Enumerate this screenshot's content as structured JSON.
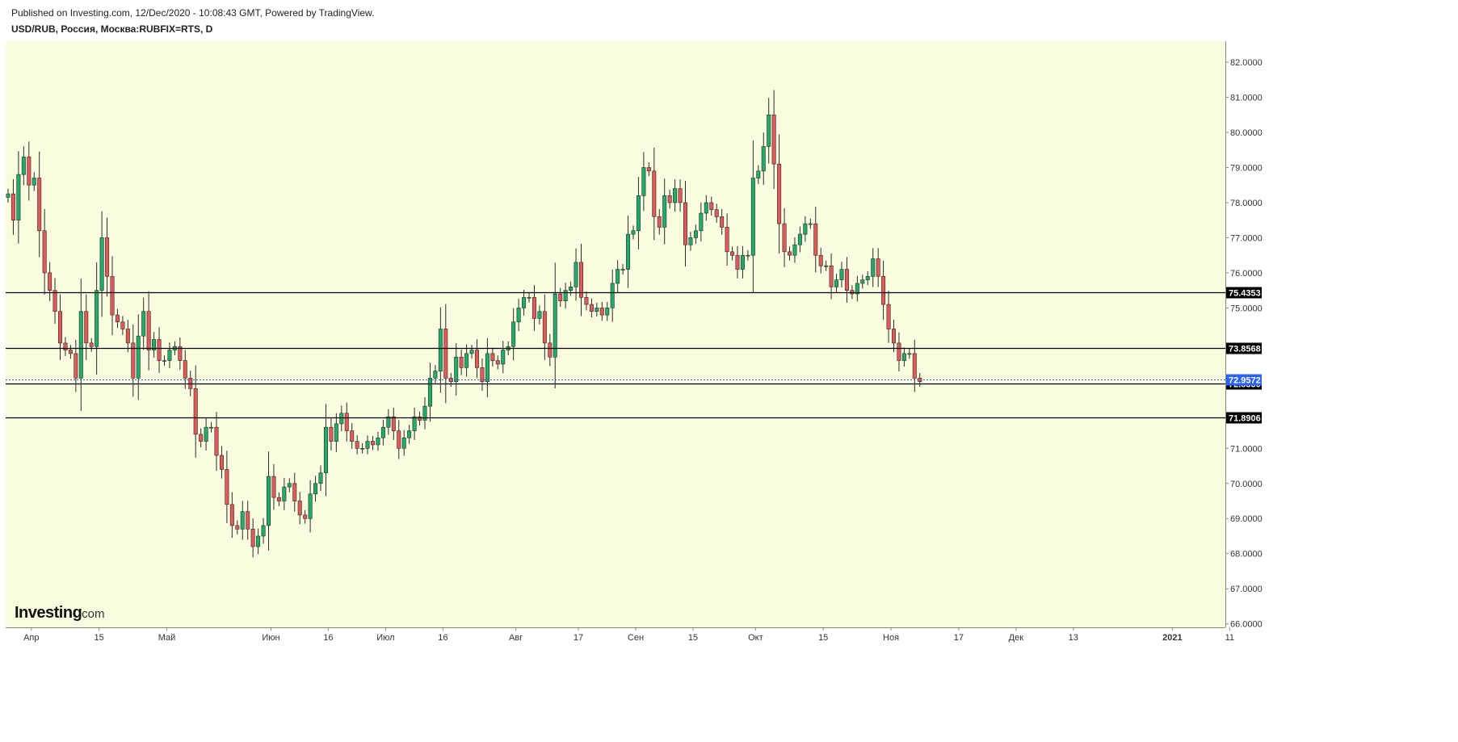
{
  "header": {
    "published": "Published on Investing.com, 12/Dec/2020 - 10:08:43 GMT, Powered by TradingView.",
    "symbol": "USD/RUB, Россия, Москва:RUBFIX=RTS, D"
  },
  "logo": {
    "main": "Investing",
    "sub": ".com"
  },
  "colors": {
    "plot_background": "#fafcdf",
    "up_candle": "#22ab6a",
    "down_candle": "#e05a5a",
    "wick": "#2a2a2a",
    "level_line": "#000000",
    "current_price": "#2962ff"
  },
  "chart_data": {
    "type": "candlestick",
    "title": "USD/RUB, Россия, Москва:RUBFIX=RTS, D",
    "ylim": [
      65.9,
      82.6
    ],
    "y_axis_side": "right",
    "grid": false,
    "y_ticks": [
      "82.0000",
      "81.0000",
      "80.0000",
      "79.0000",
      "78.0000",
      "77.0000",
      "76.0000",
      "75.0000",
      "71.0000",
      "70.0000",
      "69.0000",
      "68.0000",
      "67.0000",
      "66.0000"
    ],
    "x_ticks": [
      "Апр",
      "15",
      "Май",
      "Июн",
      "16",
      "Июл",
      "16",
      "Авг",
      "17",
      "Сен",
      "15",
      "Окт",
      "15",
      "Ноя",
      "17",
      "Дек",
      "13",
      "2021",
      "11"
    ],
    "horizontal_levels": [
      "75.4353",
      "73.8568",
      "72.8550",
      "71.8906"
    ],
    "current_price": "72.9572",
    "closes": [
      78.25,
      77.5,
      78.8,
      79.3,
      78.5,
      78.7,
      77.2,
      76.0,
      75.5,
      74.9,
      74.0,
      73.8,
      73.7,
      73.0,
      74.9,
      74.0,
      73.9,
      75.5,
      77.0,
      75.9,
      74.8,
      74.6,
      74.4,
      74.0,
      73.0,
      74.2,
      74.9,
      73.8,
      74.1,
      73.5,
      73.5,
      73.8,
      73.9,
      73.5,
      73.0,
      72.7,
      71.4,
      71.2,
      71.6,
      71.6,
      70.8,
      70.4,
      69.4,
      68.8,
      68.7,
      69.2,
      68.7,
      68.2,
      68.5,
      68.8,
      70.2,
      69.6,
      69.5,
      69.9,
      70.0,
      69.5,
      69.1,
      69.0,
      69.7,
      70.0,
      70.3,
      71.6,
      71.2,
      71.7,
      72.0,
      71.5,
      71.2,
      71.0,
      71.0,
      71.2,
      71.1,
      71.3,
      71.6,
      71.9,
      71.5,
      71.0,
      71.3,
      71.5,
      71.9,
      71.8,
      72.2,
      73.0,
      73.2,
      74.4,
      73.0,
      72.9,
      73.6,
      73.3,
      73.7,
      73.8,
      73.3,
      72.9,
      73.7,
      73.5,
      73.4,
      73.8,
      73.9,
      74.6,
      75.0,
      75.3,
      75.3,
      74.7,
      74.9,
      74.0,
      73.6,
      75.4,
      75.2,
      75.5,
      75.6,
      76.3,
      75.3,
      75.1,
      74.9,
      75.0,
      74.8,
      75.0,
      75.7,
      76.1,
      76.1,
      77.1,
      77.2,
      78.2,
      79.0,
      78.9,
      77.6,
      77.3,
      78.2,
      78.0,
      78.4,
      78.0,
      76.8,
      77.0,
      77.2,
      77.7,
      78.0,
      77.8,
      77.6,
      77.3,
      76.6,
      76.5,
      76.1,
      76.5,
      76.5,
      78.7,
      78.9,
      79.6,
      80.5,
      79.1,
      77.4,
      76.6,
      76.5,
      76.8,
      77.1,
      77.4,
      77.4,
      76.5,
      76.2,
      76.2,
      75.6,
      75.8,
      76.1,
      75.5,
      75.4,
      75.7,
      75.8,
      75.9,
      76.4,
      75.9,
      75.1,
      74.4,
      74.0,
      73.5,
      73.7,
      73.7,
      73.0,
      72.9
    ]
  }
}
